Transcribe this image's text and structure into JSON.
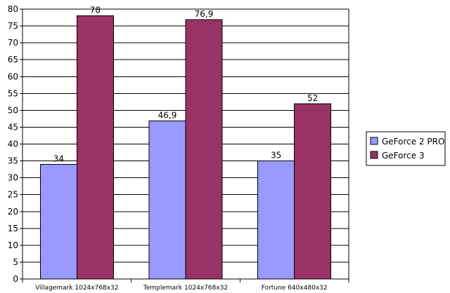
{
  "chart_data": {
    "type": "bar",
    "categories": [
      "Villagemark 1024x768x32",
      "Templemark 1024x768x32",
      "Fortune 640x480x32"
    ],
    "series": [
      {
        "name": "GeForce 2 PRO",
        "values": [
          34,
          46.9,
          35
        ],
        "labels": [
          "34",
          "46,9",
          "35"
        ],
        "color": "#9999ff"
      },
      {
        "name": "GeForce 3",
        "values": [
          78,
          76.9,
          52
        ],
        "labels": [
          "78",
          "76,9",
          "52"
        ],
        "color": "#993366"
      }
    ],
    "ylim": [
      0,
      80
    ],
    "ytick_step": 5,
    "grid": true,
    "legend_position": "right",
    "title": "",
    "xlabel": "",
    "ylabel": ""
  }
}
